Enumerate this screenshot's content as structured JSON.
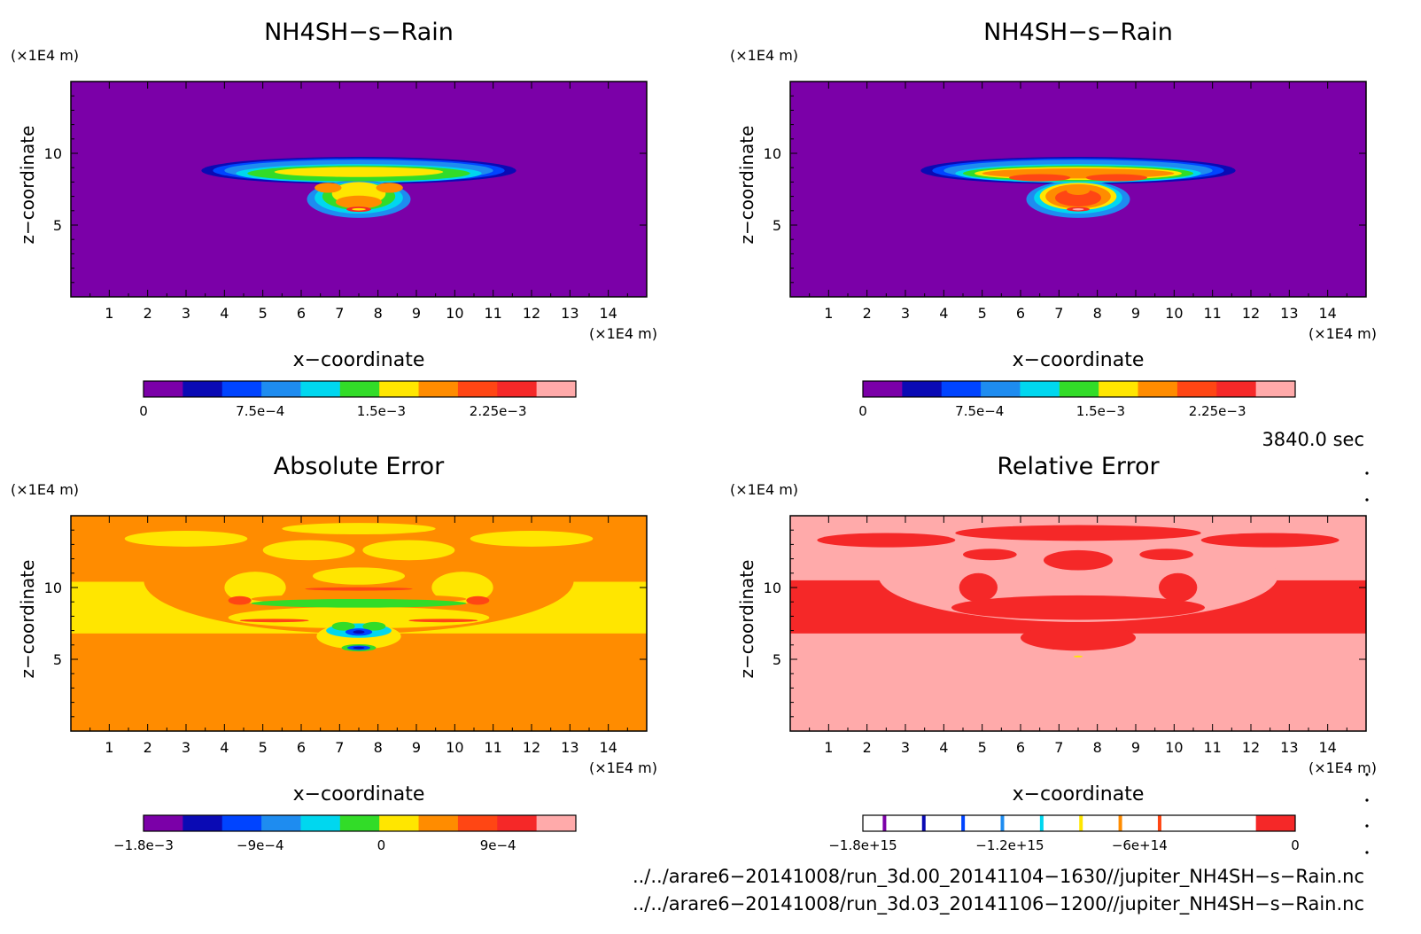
{
  "colors": {
    "purple": "#7b00a8",
    "navy": "#0a0ab4",
    "blue": "#0044ff",
    "azure": "#1e8cf0",
    "cyan": "#00d7ef",
    "green": "#32dc28",
    "yellow": "#ffe600",
    "orange": "#ff8c00",
    "redorange": "#ff4614",
    "red": "#f52828",
    "pink": "#ffaaaa"
  },
  "chart_data": [
    {
      "type": "heatmap",
      "title": "NH4SH−s−Rain",
      "xlabel": "x−coordinate",
      "ylabel": "z−coordinate",
      "xunit": "(×1E4 m)",
      "yunit": "(×1E4 m)",
      "xlim": [
        0,
        15
      ],
      "ylim": [
        0,
        15
      ],
      "xticks": [
        "1",
        "2",
        "3",
        "4",
        "5",
        "6",
        "7",
        "8",
        "9",
        "10",
        "11",
        "12",
        "13",
        "14"
      ],
      "yticks": [
        "5",
        "10"
      ],
      "background": "purple",
      "blobs": [
        {
          "color": "navy",
          "cx": 7.5,
          "cy": 8.8,
          "rx": 4.1,
          "ry": 0.95
        },
        {
          "color": "blue",
          "cx": 7.5,
          "cy": 8.8,
          "rx": 3.8,
          "ry": 0.85
        },
        {
          "color": "azure",
          "cx": 7.5,
          "cy": 8.8,
          "rx": 3.5,
          "ry": 0.75
        },
        {
          "color": "cyan",
          "cx": 7.5,
          "cy": 8.6,
          "rx": 3.2,
          "ry": 0.65
        },
        {
          "color": "azure",
          "cx": 7.5,
          "cy": 6.8,
          "rx": 1.35,
          "ry": 1.3
        },
        {
          "color": "cyan",
          "cx": 7.5,
          "cy": 6.9,
          "rx": 1.15,
          "ry": 1.1
        },
        {
          "color": "green",
          "cx": 7.5,
          "cy": 8.6,
          "rx": 2.9,
          "ry": 0.55
        },
        {
          "color": "green",
          "cx": 7.5,
          "cy": 7.0,
          "rx": 0.95,
          "ry": 0.95
        },
        {
          "color": "yellow",
          "cx": 7.5,
          "cy": 8.7,
          "rx": 2.2,
          "ry": 0.35
        },
        {
          "color": "yellow",
          "cx": 7.5,
          "cy": 7.2,
          "rx": 0.7,
          "ry": 0.8
        },
        {
          "color": "orange",
          "cx": 7.5,
          "cy": 6.6,
          "rx": 0.6,
          "ry": 0.45
        },
        {
          "color": "orange",
          "cx": 6.7,
          "cy": 7.6,
          "rx": 0.35,
          "ry": 0.35
        },
        {
          "color": "orange",
          "cx": 8.3,
          "cy": 7.6,
          "rx": 0.35,
          "ry": 0.35
        },
        {
          "color": "red",
          "cx": 7.5,
          "cy": 6.1,
          "rx": 0.32,
          "ry": 0.18
        },
        {
          "color": "yellow",
          "cx": 7.5,
          "cy": 6.1,
          "rx": 0.18,
          "ry": 0.08
        }
      ],
      "colorbar": {
        "colors": [
          "purple",
          "navy",
          "blue",
          "azure",
          "cyan",
          "green",
          "yellow",
          "orange",
          "redorange",
          "red",
          "pink"
        ],
        "labels": [
          "0",
          "7.5e−4",
          "1.5e−3",
          "2.25e−3"
        ]
      }
    },
    {
      "type": "heatmap",
      "title": "NH4SH−s−Rain",
      "xlabel": "x−coordinate",
      "ylabel": "z−coordinate",
      "xunit": "(×1E4 m)",
      "yunit": "(×1E4 m)",
      "xlim": [
        0,
        15
      ],
      "ylim": [
        0,
        15
      ],
      "xticks": [
        "1",
        "2",
        "3",
        "4",
        "5",
        "6",
        "7",
        "8",
        "9",
        "10",
        "11",
        "12",
        "13",
        "14"
      ],
      "yticks": [
        "5",
        "10"
      ],
      "background": "purple",
      "blobs": [
        {
          "color": "navy",
          "cx": 7.5,
          "cy": 8.8,
          "rx": 4.1,
          "ry": 0.95
        },
        {
          "color": "blue",
          "cx": 7.5,
          "cy": 8.8,
          "rx": 3.8,
          "ry": 0.85
        },
        {
          "color": "azure",
          "cx": 7.5,
          "cy": 8.8,
          "rx": 3.5,
          "ry": 0.75
        },
        {
          "color": "azure",
          "cx": 7.5,
          "cy": 6.8,
          "rx": 1.35,
          "ry": 1.3
        },
        {
          "color": "cyan",
          "cx": 7.5,
          "cy": 8.6,
          "rx": 3.2,
          "ry": 0.65
        },
        {
          "color": "cyan",
          "cx": 7.5,
          "cy": 6.9,
          "rx": 1.15,
          "ry": 1.1
        },
        {
          "color": "green",
          "cx": 7.5,
          "cy": 8.6,
          "rx": 3.0,
          "ry": 0.55
        },
        {
          "color": "yellow",
          "cx": 7.5,
          "cy": 8.6,
          "rx": 2.7,
          "ry": 0.45
        },
        {
          "color": "yellow",
          "cx": 7.5,
          "cy": 7.0,
          "rx": 1.0,
          "ry": 0.95
        },
        {
          "color": "orange",
          "cx": 7.5,
          "cy": 8.6,
          "rx": 2.5,
          "ry": 0.35
        },
        {
          "color": "orange",
          "cx": 7.5,
          "cy": 7.0,
          "rx": 0.85,
          "ry": 0.85
        },
        {
          "color": "redorange",
          "cx": 6.5,
          "cy": 8.3,
          "rx": 0.8,
          "ry": 0.25
        },
        {
          "color": "redorange",
          "cx": 8.5,
          "cy": 8.3,
          "rx": 0.8,
          "ry": 0.25
        },
        {
          "color": "redorange",
          "cx": 7.5,
          "cy": 6.9,
          "rx": 0.6,
          "ry": 0.6
        },
        {
          "color": "orange",
          "cx": 7.5,
          "cy": 7.4,
          "rx": 0.3,
          "ry": 0.3
        },
        {
          "color": "red",
          "cx": 7.5,
          "cy": 6.1,
          "rx": 0.3,
          "ry": 0.15
        },
        {
          "color": "pink",
          "cx": 7.5,
          "cy": 6.1,
          "rx": 0.15,
          "ry": 0.07
        }
      ],
      "colorbar": {
        "colors": [
          "purple",
          "navy",
          "blue",
          "azure",
          "cyan",
          "green",
          "yellow",
          "orange",
          "redorange",
          "red",
          "pink"
        ],
        "labels": [
          "0",
          "7.5e−4",
          "1.5e−3",
          "2.25e−3"
        ]
      }
    },
    {
      "type": "heatmap",
      "title": "Absolute Error",
      "xlabel": "x−coordinate",
      "ylabel": "z−coordinate",
      "xunit": "(×1E4 m)",
      "yunit": "(×1E4 m)",
      "xlim": [
        0,
        15
      ],
      "ylim": [
        0,
        15
      ],
      "xticks": [
        "1",
        "2",
        "3",
        "4",
        "5",
        "6",
        "7",
        "8",
        "9",
        "10",
        "11",
        "12",
        "13",
        "14"
      ],
      "yticks": [
        "5",
        "10"
      ],
      "background": "orange",
      "bands": [
        {
          "color": "yellow",
          "z0": 6.8,
          "z1": 10.4
        }
      ],
      "blobs": [
        {
          "color": "orange",
          "cx": 7.5,
          "cy": 10.5,
          "rx": 5.6,
          "ry": 3.7
        },
        {
          "color": "yellow",
          "cx": 3.0,
          "cy": 13.4,
          "rx": 1.6,
          "ry": 0.55
        },
        {
          "color": "yellow",
          "cx": 6.2,
          "cy": 12.6,
          "rx": 1.2,
          "ry": 0.7
        },
        {
          "color": "yellow",
          "cx": 8.8,
          "cy": 12.6,
          "rx": 1.2,
          "ry": 0.7
        },
        {
          "color": "yellow",
          "cx": 12.0,
          "cy": 13.4,
          "rx": 1.6,
          "ry": 0.55
        },
        {
          "color": "yellow",
          "cx": 7.5,
          "cy": 14.1,
          "rx": 2.0,
          "ry": 0.4
        },
        {
          "color": "yellow",
          "cx": 7.5,
          "cy": 10.8,
          "rx": 1.2,
          "ry": 0.6
        },
        {
          "color": "yellow",
          "cx": 4.8,
          "cy": 10.0,
          "rx": 0.8,
          "ry": 1.1
        },
        {
          "color": "yellow",
          "cx": 10.2,
          "cy": 10.0,
          "rx": 0.8,
          "ry": 1.1
        },
        {
          "color": "yellow",
          "cx": 7.5,
          "cy": 7.9,
          "rx": 3.4,
          "ry": 0.75
        },
        {
          "color": "orange",
          "cx": 7.5,
          "cy": 9.2,
          "rx": 2.8,
          "ry": 0.35
        },
        {
          "color": "green",
          "cx": 7.5,
          "cy": 8.9,
          "rx": 2.8,
          "ry": 0.3
        },
        {
          "color": "redorange",
          "cx": 4.4,
          "cy": 9.1,
          "rx": 0.3,
          "ry": 0.3
        },
        {
          "color": "redorange",
          "cx": 10.6,
          "cy": 9.1,
          "rx": 0.3,
          "ry": 0.3
        },
        {
          "color": "redorange",
          "cx": 7.5,
          "cy": 9.9,
          "rx": 1.4,
          "ry": 0.12
        },
        {
          "color": "redorange",
          "cx": 5.3,
          "cy": 7.7,
          "rx": 0.9,
          "ry": 0.12
        },
        {
          "color": "redorange",
          "cx": 9.7,
          "cy": 7.7,
          "rx": 0.9,
          "ry": 0.12
        },
        {
          "color": "yellow",
          "cx": 7.5,
          "cy": 6.6,
          "rx": 1.1,
          "ry": 0.9
        },
        {
          "color": "cyan",
          "cx": 7.5,
          "cy": 7.0,
          "rx": 0.85,
          "ry": 0.5
        },
        {
          "color": "green",
          "cx": 7.1,
          "cy": 7.3,
          "rx": 0.3,
          "ry": 0.3
        },
        {
          "color": "green",
          "cx": 7.9,
          "cy": 7.3,
          "rx": 0.3,
          "ry": 0.3
        },
        {
          "color": "blue",
          "cx": 7.5,
          "cy": 6.9,
          "rx": 0.35,
          "ry": 0.25
        },
        {
          "color": "navy",
          "cx": 7.5,
          "cy": 6.9,
          "rx": 0.15,
          "ry": 0.12
        },
        {
          "color": "green",
          "cx": 7.5,
          "cy": 5.8,
          "rx": 0.45,
          "ry": 0.25
        },
        {
          "color": "blue",
          "cx": 7.5,
          "cy": 5.8,
          "rx": 0.3,
          "ry": 0.16
        },
        {
          "color": "navy",
          "cx": 7.5,
          "cy": 5.8,
          "rx": 0.15,
          "ry": 0.08
        }
      ],
      "colorbar": {
        "colors": [
          "purple",
          "navy",
          "blue",
          "azure",
          "cyan",
          "green",
          "yellow",
          "orange",
          "redorange",
          "red",
          "pink"
        ],
        "labels": [
          "−1.8e−3",
          "−9e−4",
          "0",
          "9e−4"
        ]
      }
    },
    {
      "type": "heatmap",
      "title": "Relative Error",
      "xlabel": "x−coordinate",
      "ylabel": "z−coordinate",
      "xunit": "(×1E4 m)",
      "yunit": "(×1E4 m)",
      "xlim": [
        0,
        15
      ],
      "ylim": [
        0,
        15
      ],
      "xticks": [
        "1",
        "2",
        "3",
        "4",
        "5",
        "6",
        "7",
        "8",
        "9",
        "10",
        "11",
        "12",
        "13",
        "14"
      ],
      "yticks": [
        "5",
        "10"
      ],
      "background": "pink",
      "bands": [
        {
          "color": "red",
          "z0": 6.8,
          "z1": 10.5
        }
      ],
      "blobs": [
        {
          "color": "pink",
          "cx": 7.5,
          "cy": 10.8,
          "rx": 5.2,
          "ry": 3.2
        },
        {
          "color": "red",
          "cx": 2.5,
          "cy": 13.3,
          "rx": 1.8,
          "ry": 0.5
        },
        {
          "color": "red",
          "cx": 12.5,
          "cy": 13.3,
          "rx": 1.8,
          "ry": 0.5
        },
        {
          "color": "red",
          "cx": 7.5,
          "cy": 13.8,
          "rx": 3.2,
          "ry": 0.55
        },
        {
          "color": "red",
          "cx": 7.5,
          "cy": 11.9,
          "rx": 0.9,
          "ry": 0.7
        },
        {
          "color": "red",
          "cx": 5.2,
          "cy": 12.3,
          "rx": 0.7,
          "ry": 0.4
        },
        {
          "color": "red",
          "cx": 9.8,
          "cy": 12.3,
          "rx": 0.7,
          "ry": 0.4
        },
        {
          "color": "red",
          "cx": 4.9,
          "cy": 10.0,
          "rx": 0.5,
          "ry": 1.0
        },
        {
          "color": "red",
          "cx": 10.1,
          "cy": 10.0,
          "rx": 0.5,
          "ry": 1.0
        },
        {
          "color": "red",
          "cx": 7.5,
          "cy": 8.6,
          "rx": 3.3,
          "ry": 0.85
        },
        {
          "color": "red",
          "cx": 7.5,
          "cy": 6.5,
          "rx": 1.5,
          "ry": 0.9
        },
        {
          "color": "yellow",
          "cx": 7.5,
          "cy": 5.2,
          "rx": 0.12,
          "ry": 0.06
        }
      ],
      "colorbar": {
        "colors": [
          "white",
          "white",
          "white",
          "white",
          "white",
          "white",
          "white",
          "white",
          "white",
          "white",
          "red"
        ],
        "markers": [
          "purple",
          "navy",
          "blue",
          "azure",
          "cyan",
          "yellow",
          "orange",
          "redorange"
        ],
        "labels": [
          "−1.8e+15",
          "−1.2e+15",
          "−6e+14",
          "0"
        ]
      }
    }
  ],
  "time_label": "3840.0 sec",
  "file_paths": [
    "../../arare6−20141008/run_3d.00_20141104−1630//jupiter_NH4SH−s−Rain.nc",
    "../../arare6−20141008/run_3d.03_20141106−1200//jupiter_NH4SH−s−Rain.nc"
  ]
}
